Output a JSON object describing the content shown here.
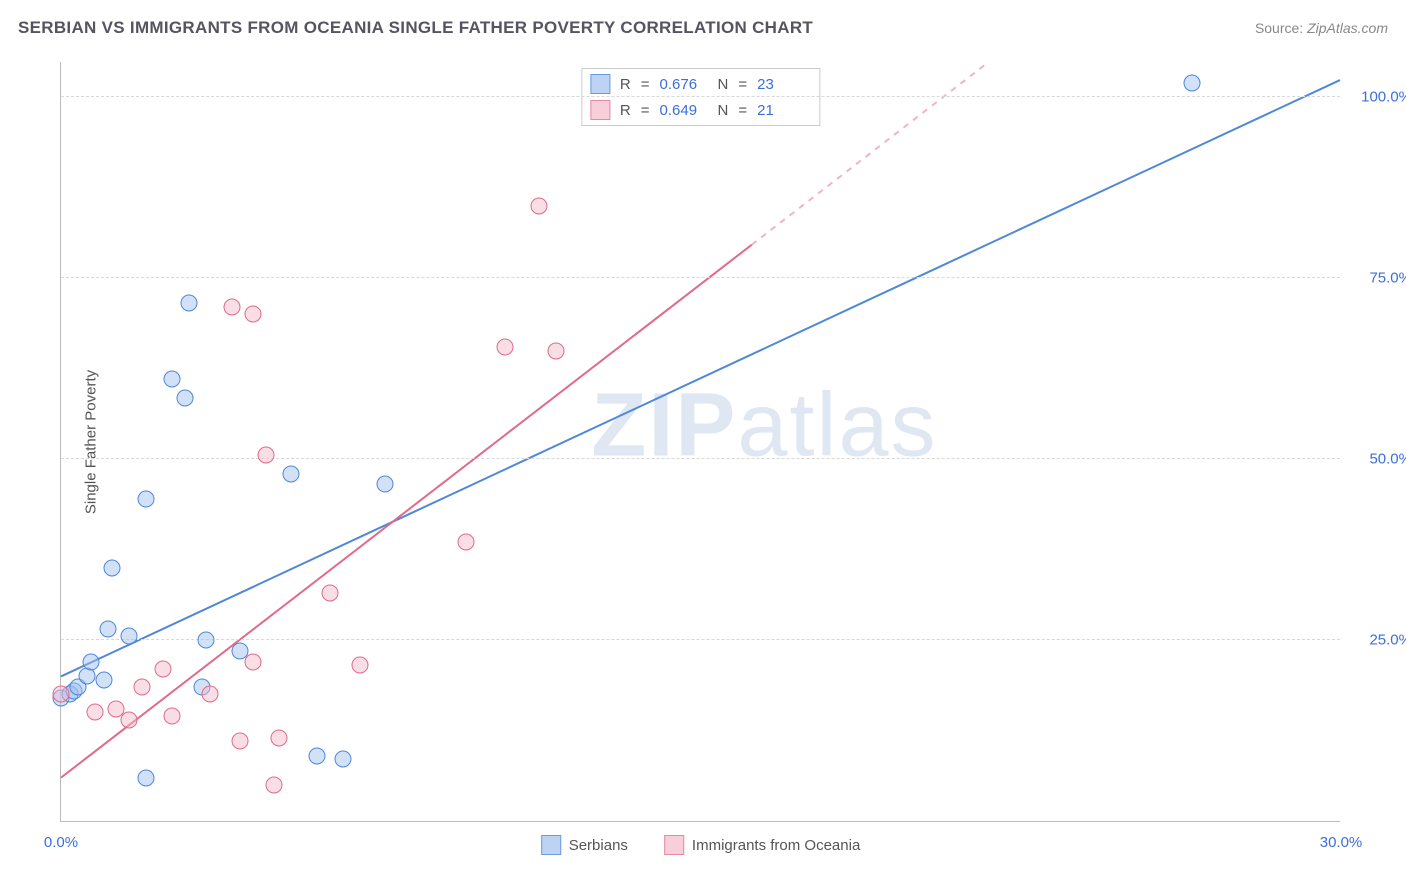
{
  "title": "SERBIAN VS IMMIGRANTS FROM OCEANIA SINGLE FATHER POVERTY CORRELATION CHART",
  "source_label": "Source:",
  "source_name": "ZipAtlas.com",
  "ylabel": "Single Father Poverty",
  "watermark_a": "ZIP",
  "watermark_b": "atlas",
  "chart": {
    "type": "scatter",
    "xlim": [
      0,
      30
    ],
    "ylim": [
      0,
      105
    ],
    "x_ticks": [
      0,
      30
    ],
    "x_tick_labels": [
      "0.0%",
      "30.0%"
    ],
    "y_ticks": [
      25,
      50,
      75,
      100
    ],
    "y_tick_labels": [
      "25.0%",
      "50.0%",
      "75.0%",
      "100.0%"
    ],
    "background_color": "#ffffff",
    "grid_color": "#d8d8d8",
    "tick_label_color": "#3b6fd8",
    "axis_text_color": "#555560",
    "point_radius": 8.5,
    "point_stroke_width": 1.3,
    "point_fill_opacity": 0.22,
    "trend_line_width": 2,
    "series": [
      {
        "key": "serbians",
        "label": "Serbians",
        "color_stroke": "#4f87d9",
        "color_fill": "#9ec0ee",
        "swatch_fill": "#bcd3f3",
        "swatch_border": "#6b9be0",
        "r": "0.676",
        "n": "23",
        "trend": {
          "slope": 2.75,
          "intercept": 20,
          "dash_after_x": 40
        },
        "points": [
          [
            0.0,
            17
          ],
          [
            0.2,
            17.5
          ],
          [
            0.3,
            18
          ],
          [
            0.4,
            18.5
          ],
          [
            0.6,
            20
          ],
          [
            0.7,
            22
          ],
          [
            1.0,
            19.5
          ],
          [
            1.1,
            26.5
          ],
          [
            1.2,
            35
          ],
          [
            1.6,
            25.5
          ],
          [
            2.0,
            44.5
          ],
          [
            2.0,
            6
          ],
          [
            2.6,
            61
          ],
          [
            2.9,
            58.5
          ],
          [
            3.0,
            71.5
          ],
          [
            3.3,
            18.5
          ],
          [
            3.4,
            25
          ],
          [
            4.2,
            23.5
          ],
          [
            5.4,
            48
          ],
          [
            6.0,
            9
          ],
          [
            6.6,
            8.5
          ],
          [
            7.6,
            46.5
          ],
          [
            26.5,
            102
          ]
        ]
      },
      {
        "key": "oceania",
        "label": "Immigrants from Oceania",
        "color_stroke": "#e06a8a",
        "color_fill": "#f3b9c9",
        "swatch_fill": "#f6cfda",
        "swatch_border": "#e58aa3",
        "r": "0.649",
        "n": "21",
        "trend": {
          "slope": 4.55,
          "intercept": 6,
          "dash_after_x": 16.2
        },
        "points": [
          [
            0.0,
            17.5
          ],
          [
            0.8,
            15
          ],
          [
            1.3,
            15.5
          ],
          [
            1.6,
            14
          ],
          [
            1.9,
            18.5
          ],
          [
            2.4,
            21
          ],
          [
            2.6,
            14.5
          ],
          [
            3.5,
            17.5
          ],
          [
            4.0,
            71
          ],
          [
            4.2,
            11
          ],
          [
            4.5,
            70
          ],
          [
            4.5,
            22
          ],
          [
            4.8,
            50.5
          ],
          [
            5.0,
            5
          ],
          [
            5.1,
            11.5
          ],
          [
            6.3,
            31.5
          ],
          [
            7.0,
            21.5
          ],
          [
            9.5,
            38.5
          ],
          [
            10.4,
            65.5
          ],
          [
            11.2,
            85
          ],
          [
            11.6,
            65
          ]
        ]
      }
    ]
  },
  "legend_stats_header": {
    "r": "R",
    "eq": "=",
    "n": "N"
  }
}
